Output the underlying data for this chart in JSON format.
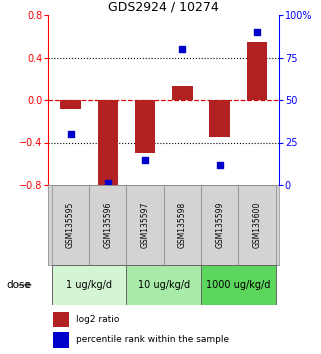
{
  "title": "GDS2924 / 10274",
  "samples": [
    "GSM135595",
    "GSM135596",
    "GSM135597",
    "GSM135598",
    "GSM135599",
    "GSM135600"
  ],
  "log2_ratio": [
    -0.08,
    -0.82,
    -0.5,
    0.13,
    -0.35,
    0.55
  ],
  "percentile_rank": [
    30,
    1,
    15,
    80,
    12,
    90
  ],
  "ylim_left": [
    -0.8,
    0.8
  ],
  "ylim_right": [
    0,
    100
  ],
  "yticks_left": [
    -0.8,
    -0.4,
    0.0,
    0.4,
    0.8
  ],
  "yticks_right": [
    0,
    25,
    50,
    75,
    100
  ],
  "ytick_labels_right": [
    "0",
    "25",
    "50",
    "75",
    "100%"
  ],
  "hlines_dotted": [
    0.4,
    -0.4
  ],
  "hline_zero_color": "#dd0000",
  "bar_color": "#b22222",
  "dot_color": "#0000cc",
  "bg_color": "#ffffff",
  "dose_groups": [
    {
      "label": "1 ug/kg/d",
      "start": 0,
      "end": 2,
      "color": "#d4f5d4"
    },
    {
      "label": "10 ug/kg/d",
      "start": 2,
      "end": 4,
      "color": "#a8eba8"
    },
    {
      "label": "1000 ug/kg/d",
      "start": 4,
      "end": 6,
      "color": "#5cd65c"
    }
  ],
  "legend_bar_label": "log2 ratio",
  "legend_dot_label": "percentile rank within the sample",
  "dose_label": "dose",
  "bar_width": 0.55,
  "sample_box_color": "#d3d3d3",
  "sample_box_edge": "#888888"
}
